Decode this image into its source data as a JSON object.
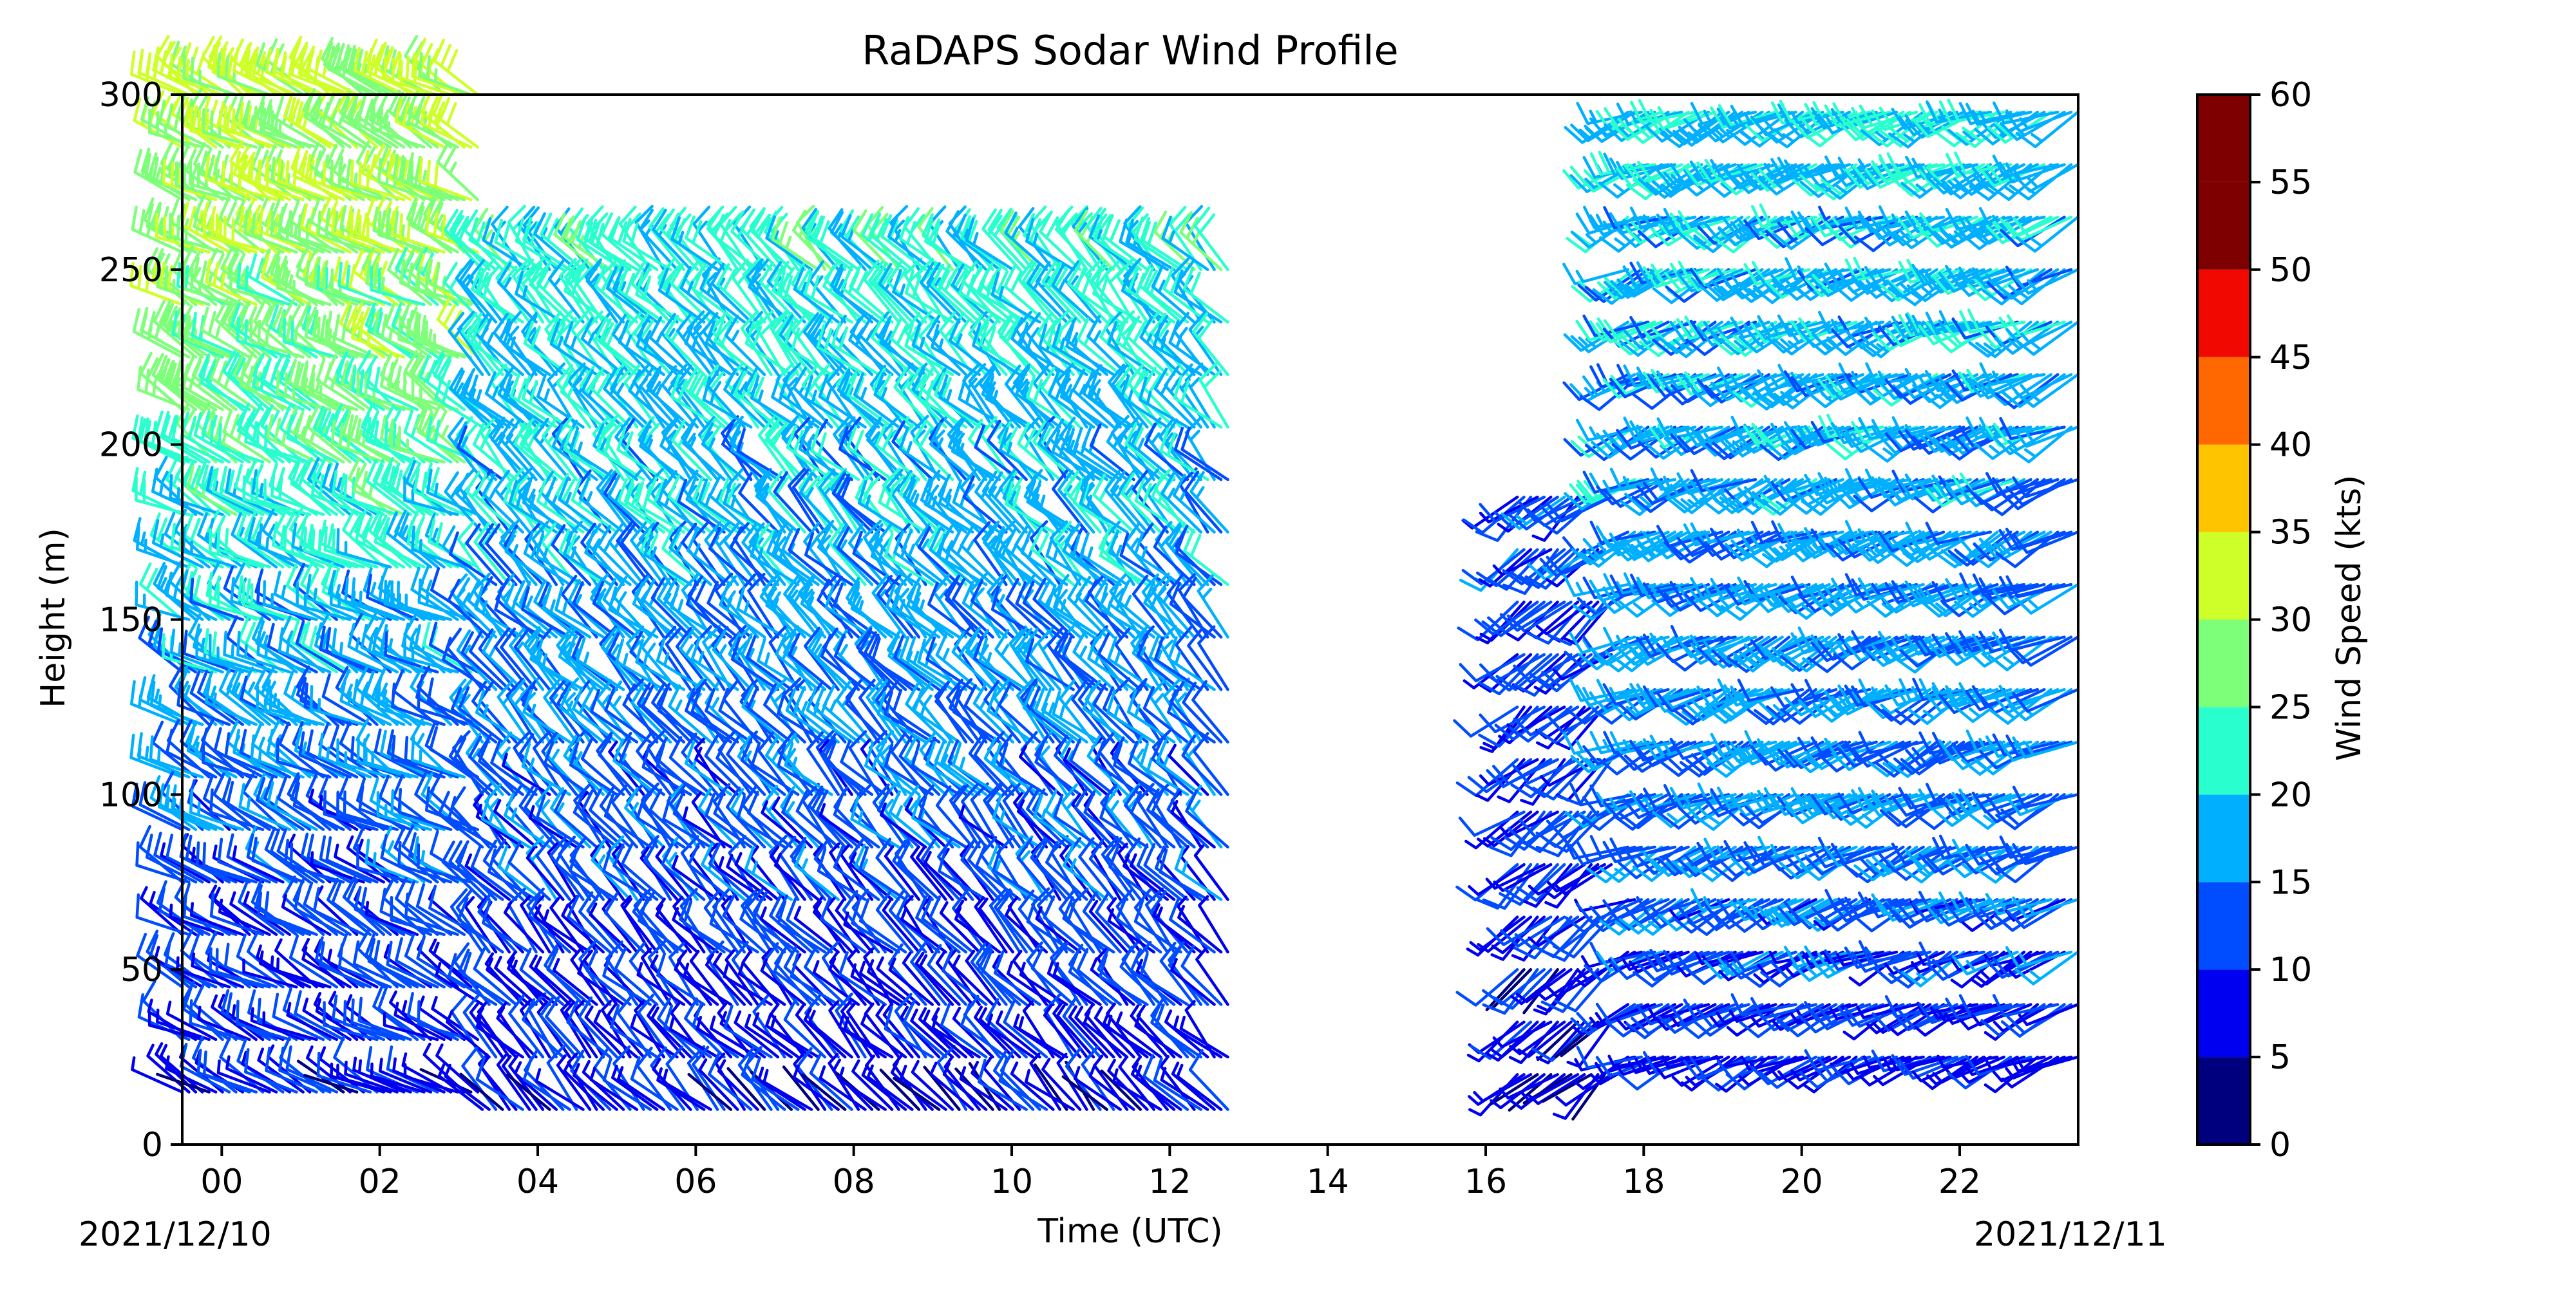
{
  "chart_data": {
    "type": "wind_barb",
    "title": "RaDAPS Sodar Wind Profile",
    "xlabel": "Time (UTC)",
    "ylabel": "Height (m)",
    "x_ticks": [
      "00",
      "02",
      "04",
      "06",
      "08",
      "10",
      "12",
      "14",
      "16",
      "18",
      "20",
      "22"
    ],
    "x_tick_hours": [
      0,
      2,
      4,
      6,
      8,
      10,
      12,
      14,
      16,
      18,
      20,
      22
    ],
    "xlim_hours": [
      -0.5,
      23.5
    ],
    "date_start": "2021/12/10",
    "date_end": "2021/12/11",
    "y_ticks": [
      0,
      50,
      100,
      150,
      200,
      250,
      300
    ],
    "ylim": [
      0,
      300
    ],
    "colorbar": {
      "label": "Wind Speed (kts)",
      "ticks": [
        0,
        5,
        10,
        15,
        20,
        25,
        30,
        35,
        40,
        45,
        50,
        55,
        60
      ],
      "bins": [
        0,
        5,
        10,
        15,
        20,
        25,
        30,
        35,
        40,
        45,
        50,
        55,
        60
      ],
      "colors": [
        "#00007f",
        "#0000f1",
        "#004cff",
        "#00b0ff",
        "#29ffce",
        "#7dff7a",
        "#ceff29",
        "#ffc400",
        "#ff6800",
        "#f10800",
        "#7f0000",
        "#7f0000"
      ]
    },
    "series": [
      {
        "t_start": -0.5,
        "t_end": 3.3,
        "levels": [
          15,
          30,
          45,
          60,
          75,
          90,
          105,
          120,
          135,
          150,
          165,
          180,
          195,
          210,
          225,
          240,
          255,
          270,
          285,
          300
        ],
        "speeds": [
          8,
          9,
          10,
          11,
          12,
          13,
          14,
          16,
          17,
          18,
          20,
          22,
          24,
          26,
          27,
          28,
          29,
          30,
          30,
          31
        ],
        "direction_deg": 300
      },
      {
        "t_start": 3.3,
        "t_end": 12.8,
        "levels": [
          10,
          25,
          40,
          55,
          70,
          85,
          100,
          115,
          130,
          145,
          160,
          175,
          190,
          205,
          220,
          235,
          250
        ],
        "speeds": [
          8,
          9,
          10,
          11,
          12,
          13,
          13,
          14,
          15,
          16,
          17,
          18,
          18,
          19,
          20,
          21,
          22
        ],
        "direction_deg": 315
      },
      {
        "t_start": 16.4,
        "t_end": 17.6,
        "levels": [
          20,
          35,
          50,
          65,
          80,
          95,
          110,
          125,
          140,
          155,
          170,
          185
        ],
        "speeds": [
          6,
          7,
          8,
          9,
          9,
          10,
          10,
          10,
          11,
          11,
          12,
          12
        ],
        "direction_deg": 230
      },
      {
        "t_start": 17.8,
        "t_end": 23.5,
        "levels": [
          25,
          40,
          55,
          70,
          85,
          100,
          115,
          130,
          145,
          160,
          175,
          190,
          205,
          220,
          235,
          250,
          265,
          280,
          295
        ],
        "speeds": [
          9,
          11,
          12,
          13,
          14,
          14,
          15,
          15,
          16,
          16,
          16,
          17,
          17,
          17,
          18,
          18,
          18,
          19,
          19
        ],
        "direction_deg": 245
      }
    ]
  }
}
